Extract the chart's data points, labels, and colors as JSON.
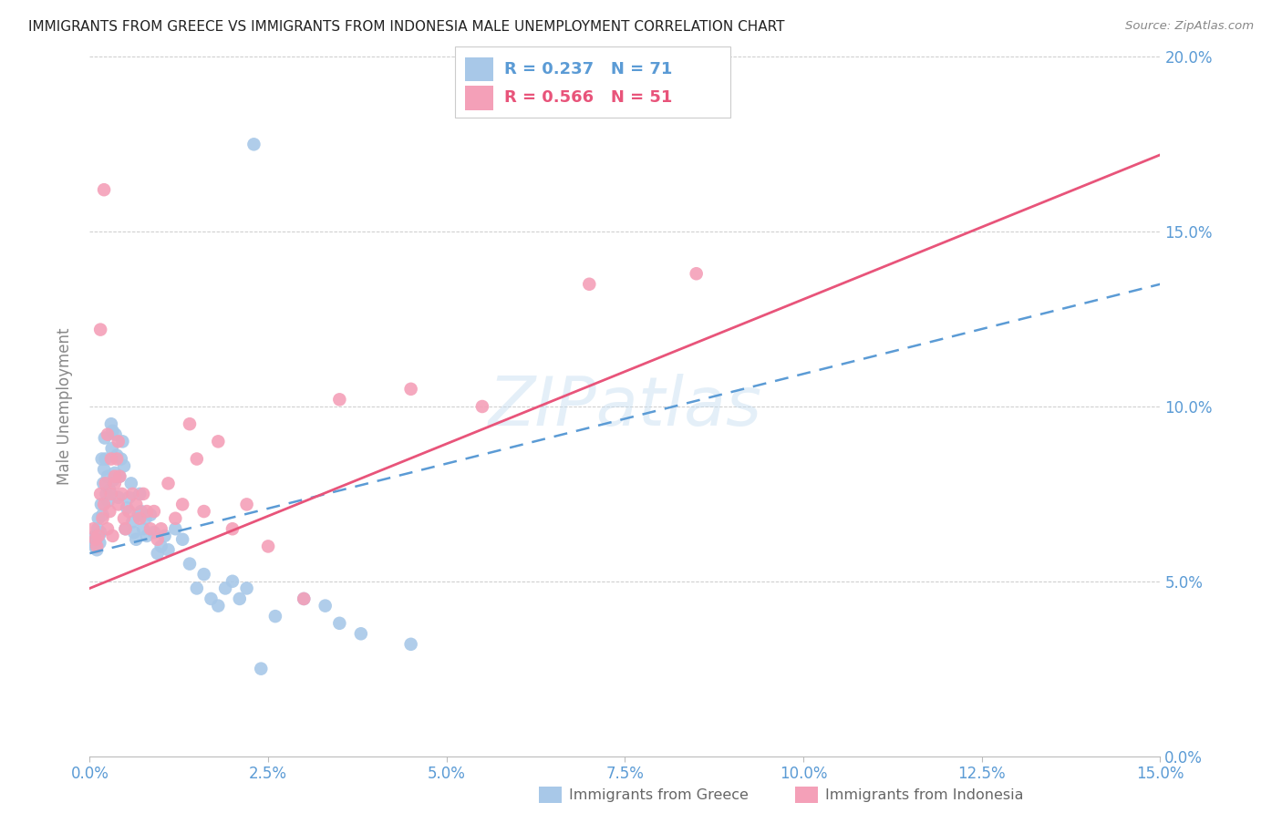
{
  "title": "IMMIGRANTS FROM GREECE VS IMMIGRANTS FROM INDONESIA MALE UNEMPLOYMENT CORRELATION CHART",
  "source": "Source: ZipAtlas.com",
  "ylabel": "Male Unemployment",
  "x_tick_labels": [
    "0.0%",
    "2.5%",
    "5.0%",
    "7.5%",
    "10.0%",
    "12.5%",
    "15.0%"
  ],
  "y_tick_labels": [
    "0.0%",
    "5.0%",
    "10.0%",
    "15.0%",
    "20.0%"
  ],
  "x_tick_vals": [
    0.0,
    2.5,
    5.0,
    7.5,
    10.0,
    12.5,
    15.0
  ],
  "y_tick_vals": [
    0.0,
    5.0,
    10.0,
    15.0,
    20.0
  ],
  "xlim": [
    0.0,
    15.0
  ],
  "ylim": [
    0.0,
    20.0
  ],
  "greece_color": "#a8c8e8",
  "indonesia_color": "#f4a0b8",
  "greece_R": 0.237,
  "greece_N": 71,
  "indonesia_R": 0.566,
  "indonesia_N": 51,
  "legend_label_greece": "Immigrants from Greece",
  "legend_label_indonesia": "Immigrants from Indonesia",
  "watermark": "ZIPatlas",
  "background_color": "#ffffff",
  "title_color": "#222222",
  "tick_color": "#5b9bd5",
  "grid_color": "#cccccc",
  "trend_line_greece_color": "#5b9bd5",
  "trend_line_indonesia_color": "#e8547a",
  "greece_scatter_x": [
    0.05,
    0.07,
    0.08,
    0.09,
    0.1,
    0.11,
    0.12,
    0.13,
    0.14,
    0.15,
    0.16,
    0.17,
    0.18,
    0.19,
    0.2,
    0.21,
    0.22,
    0.23,
    0.25,
    0.26,
    0.28,
    0.3,
    0.31,
    0.32,
    0.33,
    0.35,
    0.36,
    0.38,
    0.4,
    0.42,
    0.44,
    0.46,
    0.48,
    0.5,
    0.52,
    0.55,
    0.58,
    0.6,
    0.62,
    0.65,
    0.68,
    0.7,
    0.72,
    0.75,
    0.78,
    0.8,
    0.85,
    0.9,
    0.95,
    1.0,
    1.05,
    1.1,
    1.2,
    1.3,
    1.4,
    1.5,
    1.6,
    1.7,
    1.8,
    1.9,
    2.0,
    2.1,
    2.2,
    2.4,
    2.6,
    3.0,
    3.3,
    3.5,
    3.8,
    4.5,
    2.3
  ],
  "greece_scatter_y": [
    6.1,
    6.0,
    6.3,
    6.2,
    5.9,
    6.5,
    6.8,
    6.3,
    6.1,
    6.4,
    7.2,
    8.5,
    6.9,
    7.8,
    8.2,
    9.1,
    8.5,
    7.5,
    8.0,
    7.3,
    7.6,
    9.5,
    8.8,
    9.3,
    7.9,
    8.1,
    9.2,
    8.6,
    7.4,
    8.0,
    8.5,
    9.0,
    8.3,
    6.5,
    7.1,
    7.4,
    7.8,
    6.7,
    6.4,
    6.2,
    6.9,
    7.5,
    7.0,
    6.5,
    6.8,
    6.3,
    6.9,
    6.4,
    5.8,
    6.0,
    6.3,
    5.9,
    6.5,
    6.2,
    5.5,
    4.8,
    5.2,
    4.5,
    4.3,
    4.8,
    5.0,
    4.5,
    4.8,
    2.5,
    4.0,
    4.5,
    4.3,
    3.8,
    3.5,
    3.2,
    17.5
  ],
  "indonesia_scatter_x": [
    0.05,
    0.08,
    0.1,
    0.12,
    0.15,
    0.18,
    0.2,
    0.22,
    0.25,
    0.28,
    0.3,
    0.32,
    0.35,
    0.38,
    0.4,
    0.42,
    0.45,
    0.48,
    0.5,
    0.55,
    0.6,
    0.65,
    0.7,
    0.75,
    0.8,
    0.85,
    0.9,
    0.95,
    1.0,
    1.1,
    1.2,
    1.3,
    1.4,
    1.5,
    1.6,
    1.8,
    2.0,
    2.2,
    2.5,
    3.0,
    3.5,
    4.5,
    5.5,
    7.0,
    8.5,
    0.2,
    0.25,
    0.3,
    0.35,
    0.4,
    0.15
  ],
  "indonesia_scatter_y": [
    6.5,
    6.2,
    6.0,
    6.3,
    7.5,
    6.8,
    7.2,
    7.8,
    6.5,
    7.0,
    7.5,
    6.3,
    7.8,
    8.5,
    7.2,
    8.0,
    7.5,
    6.8,
    6.5,
    7.0,
    7.5,
    7.2,
    6.8,
    7.5,
    7.0,
    6.5,
    7.0,
    6.2,
    6.5,
    7.8,
    6.8,
    7.2,
    9.5,
    8.5,
    7.0,
    9.0,
    6.5,
    7.2,
    6.0,
    4.5,
    10.2,
    10.5,
    10.0,
    13.5,
    13.8,
    16.2,
    9.2,
    8.5,
    8.0,
    9.0,
    12.2
  ],
  "greece_trend_x0": 0.0,
  "greece_trend_y0": 5.8,
  "greece_trend_x1": 15.0,
  "greece_trend_y1": 13.5,
  "indonesia_trend_x0": 0.0,
  "indonesia_trend_y0": 4.8,
  "indonesia_trend_x1": 15.0,
  "indonesia_trend_y1": 17.2
}
